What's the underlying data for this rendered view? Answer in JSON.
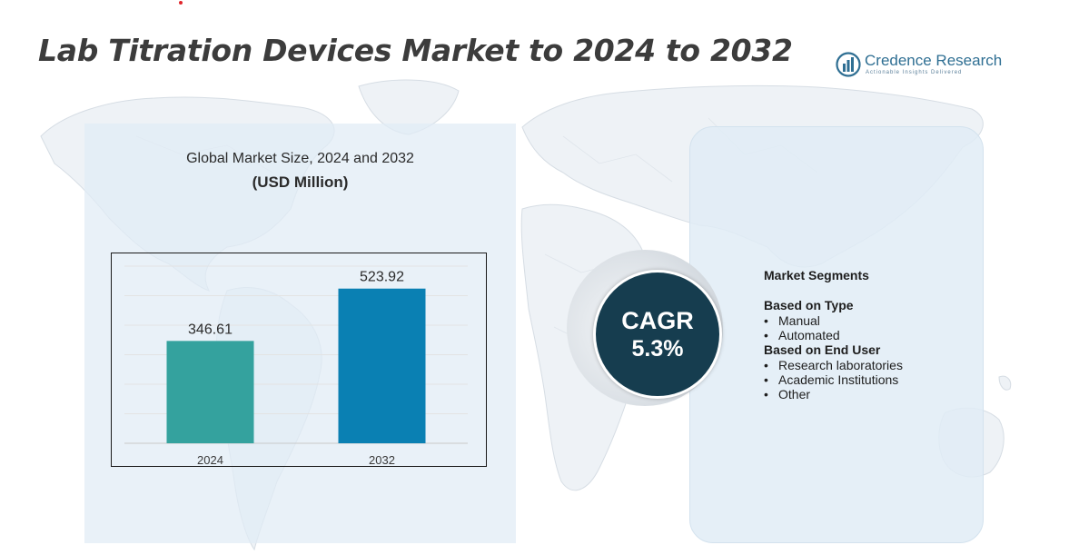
{
  "title": "Lab Titration Devices Market to 2024 to 2032",
  "brand": {
    "name": "Credence Research",
    "tagline": "Actionable Insights Delivered",
    "icon": "bar-chart-circle-icon"
  },
  "chart_heading": {
    "line1": "Global Market Size,  2024 and 2032",
    "line2": "(USD Million)"
  },
  "chart_data": {
    "type": "bar",
    "categories": [
      "2024",
      "2032"
    ],
    "values": [
      346.61,
      523.92
    ],
    "value_labels": [
      "346.61",
      "523.92"
    ],
    "colors": [
      "#34a29e",
      "#0a80b3"
    ],
    "title": "Global Market Size,  2024 and 2032",
    "ylabel": "(USD Million)",
    "xlabel": "",
    "ylim": [
      0,
      600
    ],
    "grid": true,
    "legend": "none"
  },
  "cagr": {
    "label": "CAGR",
    "value": "5.3%"
  },
  "segments": {
    "title": "Market Segments",
    "groups": [
      {
        "title": "Based on Type",
        "items": [
          "Manual",
          "Automated"
        ]
      },
      {
        "title": "Based on End User",
        "items": [
          "Research laboratories",
          "Academic Institutions",
          "Other"
        ]
      }
    ]
  },
  "colors": {
    "title_text": "#3c3c3c",
    "panel_bg": "#e1ebf5",
    "cagr_circle": "#163d4f",
    "brand": "#2f6f93"
  }
}
